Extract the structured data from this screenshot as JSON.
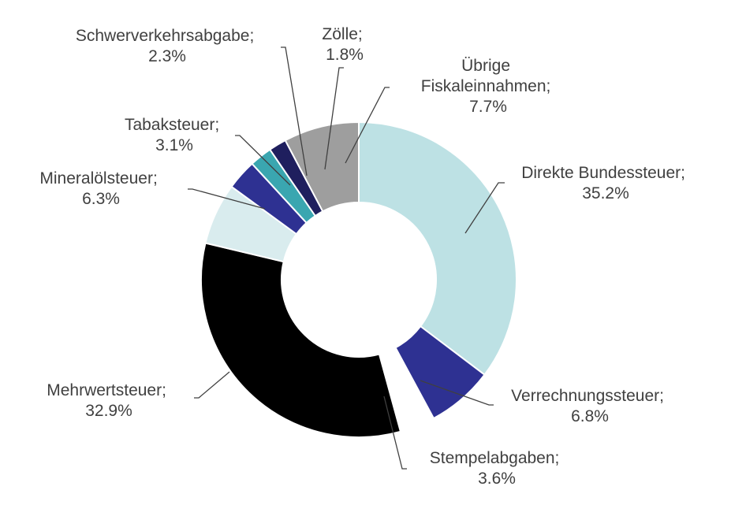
{
  "chart_data": {
    "type": "pie",
    "variant": "donut",
    "title": "",
    "legend": "none",
    "slices": [
      {
        "name": "Direkte Bundessteuer",
        "value": 35.2,
        "value_label": "35.2%",
        "color": "#bde1e4",
        "label_lines": [
          "Direkte Bundessteuer;",
          "35.2%"
        ]
      },
      {
        "name": "Verrechnungssteuer",
        "value": 6.8,
        "value_label": "6.8%",
        "color": "#2e3192",
        "label_lines": [
          "Verrechnungssteuer;",
          "6.8%"
        ]
      },
      {
        "name": "Stempelabgaben",
        "value": 3.6,
        "value_label": "3.6%",
        "color": "#ffffff",
        "exploded": true,
        "label_lines": [
          "Stempelabgaben;",
          "3.6%"
        ]
      },
      {
        "name": "Mehrwertsteuer",
        "value": 32.9,
        "value_label": "32.9%",
        "color": "#000000",
        "label_lines": [
          "Mehrwertsteuer;",
          "32.9%"
        ]
      },
      {
        "name": "Mineralölsteuer",
        "value": 6.3,
        "value_label": "6.3%",
        "color": "#d9ecee",
        "label_lines": [
          "Mineralölsteuer;",
          "6.3%"
        ]
      },
      {
        "name": "Tabaksteuer",
        "value": 3.1,
        "value_label": "3.1%",
        "color": "#2e3192",
        "label_lines": [
          "Tabaksteuer;",
          "3.1%"
        ]
      },
      {
        "name": "Schwerverkehrsabgabe",
        "value": 2.3,
        "value_label": "2.3%",
        "color": "#3aa6b0",
        "label_lines": [
          "Schwerverkehrsabgabe;",
          "2.3%"
        ]
      },
      {
        "name": "Zölle",
        "value": 1.8,
        "value_label": "1.8%",
        "color": "#1f1f5e",
        "label_lines": [
          "Zölle;",
          "1.8%"
        ]
      },
      {
        "name": "Übrige Fiskaleinnahmen",
        "value": 7.7,
        "value_label": "7.7%",
        "color": "#9e9e9e",
        "label_lines": [
          "Übrige",
          "Fiskaleinnahmen;",
          "7.7%"
        ]
      }
    ]
  }
}
